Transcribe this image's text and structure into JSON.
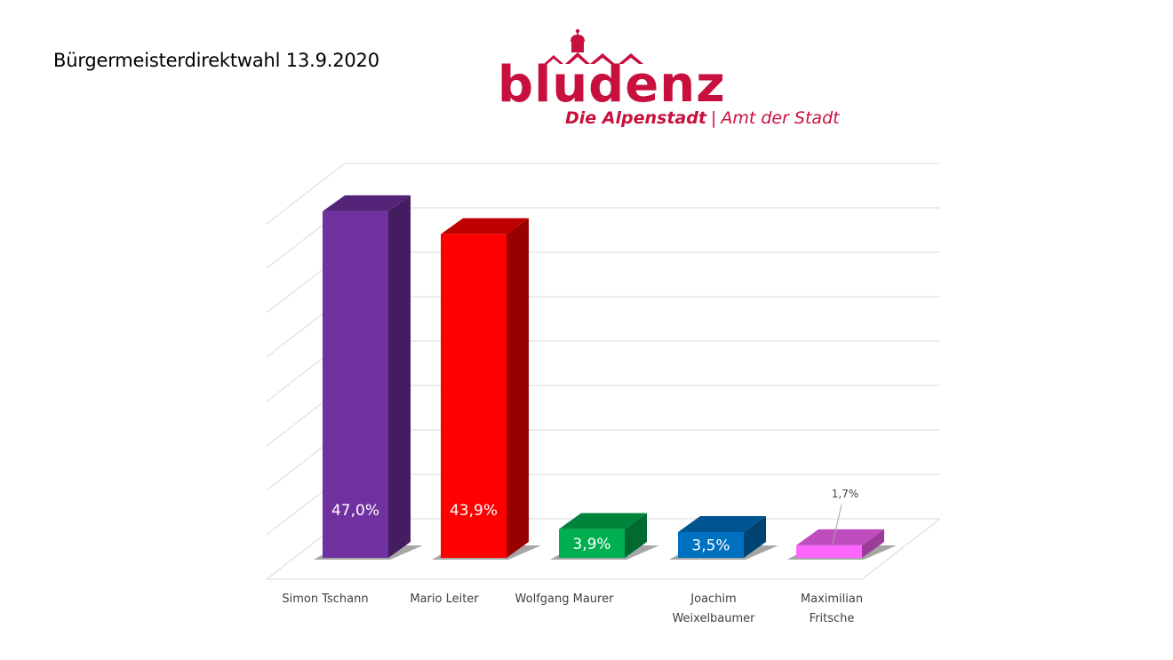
{
  "title": "Bürgermeisterdirektwahl 13.9.2020",
  "logo": {
    "word": "bludenz",
    "tagline_strong": "Die Alpenstadt",
    "separator": "|",
    "tagline_rest": "Amt der Stadt",
    "color": "#c8103e"
  },
  "chart_data": {
    "type": "bar",
    "style": "3d",
    "title": "",
    "xlabel": "",
    "ylabel": "",
    "ylim": [
      0,
      50
    ],
    "grid": true,
    "legend": "none",
    "categories": [
      "Simon Tschann",
      "Mario Leiter",
      "Wolfgang Maurer",
      "Joachim Weixelbaumer",
      "Maximilian Fritsche"
    ],
    "category_lines": [
      [
        "Simon Tschann"
      ],
      [
        "Mario Leiter"
      ],
      [
        "Wolfgang Maurer"
      ],
      [
        "Joachim",
        "Weixelbaumer"
      ],
      [
        "Maximilian",
        "Fritsche"
      ]
    ],
    "values": [
      47.0,
      43.9,
      3.9,
      3.5,
      1.7
    ],
    "value_labels": [
      "47,0%",
      "43,9%",
      "3,9%",
      "3,5%",
      "1,7%"
    ],
    "colors": [
      "#7030a0",
      "#ff0000",
      "#00b050",
      "#0070c0",
      "#ff66ff"
    ]
  }
}
